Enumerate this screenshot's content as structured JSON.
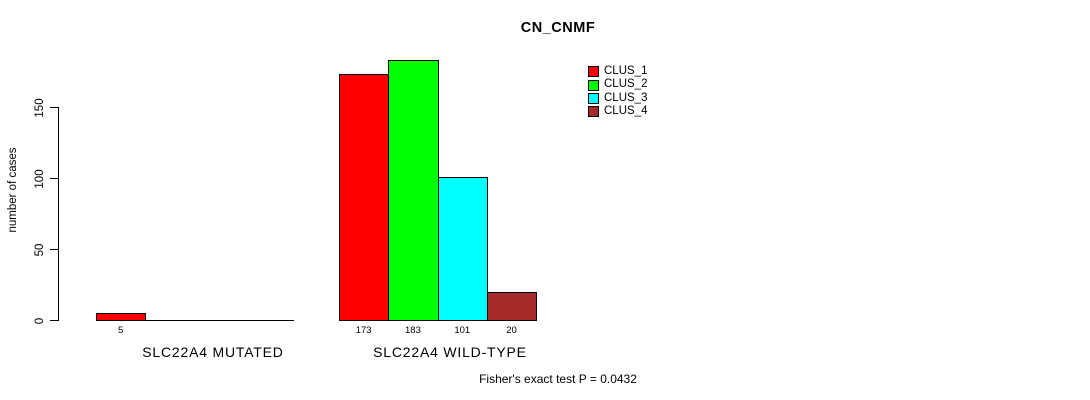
{
  "chart_data": {
    "type": "bar",
    "title": "CN_CNMF",
    "xlabel": "",
    "ylabel": "number of cases",
    "yticks": [
      0,
      50,
      100,
      150
    ],
    "ylim": [
      0,
      190
    ],
    "grid": false,
    "categories": [
      "SLC22A4 MUTATED",
      "SLC22A4 WILD-TYPE"
    ],
    "series": [
      {
        "name": "CLUS_1",
        "color": "#FF0000",
        "values": [
          5,
          173
        ]
      },
      {
        "name": "CLUS_2",
        "color": "#00FF00",
        "values": [
          0,
          183
        ]
      },
      {
        "name": "CLUS_3",
        "color": "#00FFFF",
        "values": [
          0,
          101
        ]
      },
      {
        "name": "CLUS_4",
        "color": "#A52A2A",
        "values": [
          0,
          20
        ]
      }
    ],
    "bar_value_labels": true,
    "hide_zero_value_labels": true,
    "legend_position": "inside-top-center-right",
    "legend_entries": [
      "CLUS_1",
      "CLUS_2",
      "CLUS_3",
      "CLUS_4"
    ],
    "annotation": "Fisher's exact test P = 0.0432"
  }
}
